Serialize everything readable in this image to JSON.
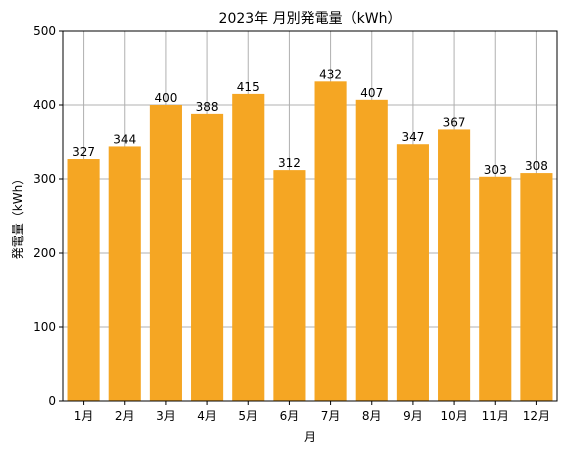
{
  "chart_data": {
    "type": "bar",
    "title": "2023年 月別発電量（kWh）",
    "xlabel": "月",
    "ylabel": "発電量（kWh）",
    "categories": [
      "1月",
      "2月",
      "3月",
      "4月",
      "5月",
      "6月",
      "7月",
      "8月",
      "9月",
      "10月",
      "11月",
      "12月"
    ],
    "values": [
      327,
      344,
      400,
      388,
      415,
      312,
      432,
      407,
      347,
      367,
      303,
      308
    ],
    "ylim": [
      0,
      500
    ],
    "yticks": [
      0,
      100,
      200,
      300,
      400,
      500
    ],
    "grid": true,
    "legend": "none",
    "bar_color": "#f5a623",
    "grid_color": "#b0b0b0",
    "data_labels": true
  }
}
